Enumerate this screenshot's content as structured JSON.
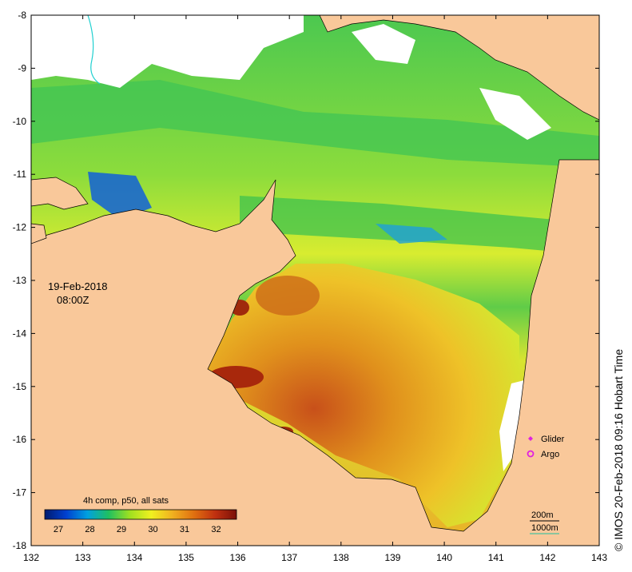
{
  "map": {
    "x_ticks": [
      "132",
      "133",
      "134",
      "135",
      "136",
      "137",
      "138",
      "139",
      "140",
      "141",
      "142",
      "143"
    ],
    "y_ticks": [
      "-8",
      "-9",
      "-10",
      "-11",
      "-12",
      "-13",
      "-14",
      "-15",
      "-16",
      "-17",
      "-18"
    ],
    "date": "19-Feb-2018",
    "time": "08:00Z",
    "colorbar_title": "4h comp, p50, all sats",
    "colorbar_ticks": [
      "27",
      "28",
      "29",
      "30",
      "31",
      "32"
    ],
    "colorbar_colors": [
      "#001a6e",
      "#0040d0",
      "#00a0e0",
      "#20c060",
      "#a0e020",
      "#f0f020",
      "#f0b020",
      "#e07010",
      "#c03010",
      "#7a1008"
    ],
    "legend": [
      {
        "label": "Glider",
        "color": "#e020e0",
        "symbol": "diamond"
      },
      {
        "label": "Argo",
        "color": "#e020e0",
        "symbol": "circle"
      }
    ],
    "contours": [
      {
        "label": "200m",
        "color": "#000000"
      },
      {
        "label": "1000m",
        "color": "#20c0a0"
      }
    ],
    "credit": "© IMOS 20-Feb-2018 09:16 Hobart Time",
    "colors": {
      "land": "#f9c89a",
      "cloud": "#ffffff",
      "sst_cool": "#3cc850",
      "sst_mid": "#d8ec30",
      "sst_warm": "#e8a020",
      "sst_hot": "#b03010"
    }
  }
}
